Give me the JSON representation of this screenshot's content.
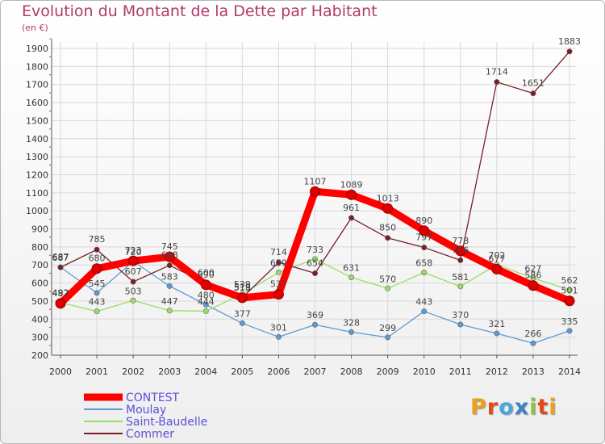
{
  "title": "Evolution du Montant de la Dette par Habitant",
  "subtitle": "(en €)",
  "logo_text": "Proxiti",
  "logo_colors": [
    "#e8a21a",
    "#e24a1a",
    "#48a8dc",
    "#3b82c8",
    "#8bc43f",
    "#e24a1a",
    "#e8a21a"
  ],
  "chart_data": {
    "type": "line",
    "x": [
      "2000",
      "2001",
      "2002",
      "2003",
      "2004",
      "2005",
      "2006",
      "2007",
      "2008",
      "2009",
      "2010",
      "2011",
      "2012",
      "2013",
      "2014"
    ],
    "ylim": [
      200,
      1900
    ],
    "yticks": [
      200,
      300,
      400,
      500,
      600,
      700,
      800,
      900,
      1000,
      1100,
      1200,
      1300,
      1400,
      1500,
      1600,
      1700,
      1800,
      1900
    ],
    "grid": true,
    "legend_position": "bottom-left",
    "series": [
      {
        "name": "CONTEST",
        "color": "#ff0000",
        "values": [
          487,
          680,
          723,
          745,
          590,
          518,
          537,
          1107,
          1089,
          1013,
          890,
          778,
          677,
          586,
          501
        ],
        "labels": [
          "487",
          "680",
          "723",
          "745",
          "590",
          "518",
          "537",
          "1107",
          "1089",
          "1013",
          "890",
          "778",
          "677",
          "586",
          "501"
        ]
      },
      {
        "name": "Moulay",
        "color": "#5b9bd5",
        "values": [
          687,
          545,
          720,
          583,
          480,
          377,
          301,
          369,
          328,
          299,
          443,
          370,
          321,
          266,
          335
        ],
        "labels": [
          "687",
          "545",
          "720",
          "583",
          "480",
          "377",
          "301",
          "369",
          "328",
          "299",
          "443",
          "370",
          "321",
          "266",
          "335"
        ]
      },
      {
        "name": "Saint-Baudelle",
        "color": "#99dd66",
        "values": [
          492,
          443,
          503,
          447,
          444,
          539,
          659,
          733,
          631,
          570,
          658,
          581,
          702,
          627,
          562
        ],
        "labels": [
          "492",
          "443",
          "503",
          "447",
          "444",
          "539",
          "659",
          "733",
          "631",
          "570",
          "658",
          "581",
          "702",
          "627",
          "562"
        ]
      },
      {
        "name": "Commer",
        "color": "#7a1e28",
        "values": [
          687,
          785,
          607,
          698,
          600,
          519,
          714,
          654,
          961,
          850,
          797,
          726,
          1714,
          1651,
          1883
        ],
        "labels": [
          "687",
          "785",
          "607",
          "698",
          "600",
          "519",
          "714",
          "654",
          "961",
          "850",
          "797",
          "726",
          "1714",
          "1651",
          "1883"
        ]
      }
    ]
  }
}
